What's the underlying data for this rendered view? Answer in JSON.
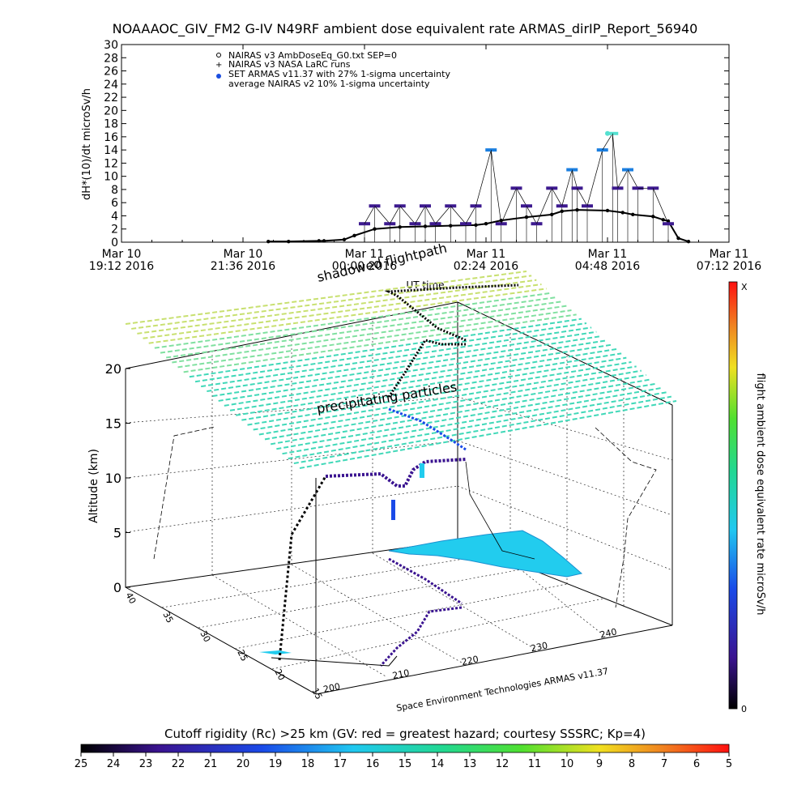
{
  "title": "NOAAAOC_GIV_FM2 G-IV   N49RF  ambient dose equivalent rate ARMAS_dirIP_Report_56940",
  "colors": {
    "armas_low": "#3d1a8f",
    "armas_mid": "#1b7fe0",
    "armas_high": "#55e0d0",
    "nairas": "#000000",
    "shadow_grid": "#40d8a0",
    "rc_fill": "#22ccee"
  },
  "top_chart": {
    "ylabel": "dH*(10)/dt microSv/h",
    "ylim": [
      0,
      30
    ],
    "yticks": [
      "0",
      "2",
      "4",
      "6",
      "8",
      "10",
      "12",
      "14",
      "16",
      "18",
      "20",
      "22",
      "24",
      "26",
      "28",
      "30"
    ],
    "xticks": [
      {
        "l1": "Mar 10",
        "l2": "19:12 2016"
      },
      {
        "l1": "Mar 10",
        "l2": "21:36 2016"
      },
      {
        "l1": "Mar 11",
        "l2": "00:00 2016"
      },
      {
        "l1": "Mar 11",
        "l2": "02:24 2016"
      },
      {
        "l1": "Mar 11",
        "l2": "04:48 2016"
      },
      {
        "l1": "Mar 11",
        "l2": "07:12 2016"
      }
    ],
    "xlabel": "UT time",
    "legend": [
      {
        "marker": "circle",
        "text": "NAIRAS v3 AmbDoseEq_G0.txt SEP=0"
      },
      {
        "marker": "plus",
        "text": "NAIRAS v3 NASA LaRC runs"
      },
      {
        "marker": "dot",
        "text": "SET ARMAS v11.37 with 27% 1-sigma uncertainty"
      },
      {
        "marker": "none",
        "text": "average NAIRAS v2 10% 1-sigma uncertainty"
      }
    ]
  },
  "chart_data": [
    {
      "type": "line",
      "title": "NOAAAOC_GIV_FM2 G-IV   N49RF  ambient dose equivalent rate ARMAS_dirIP_Report_56940",
      "xlabel": "UT time",
      "ylabel": "dH*(10)/dt microSv/h",
      "x_unit": "hours after Mar 10 19:12 2016",
      "xlim": [
        0,
        12
      ],
      "ylim": [
        0,
        30
      ],
      "series": [
        {
          "name": "NAIRAS v3 AmbDoseEq_G0.txt SEP=0",
          "x": [
            2.9,
            3.3,
            3.9,
            4.0,
            4.4,
            4.6,
            5.0,
            5.5,
            6.0,
            6.5,
            7.0,
            7.2,
            7.5,
            8.0,
            8.5,
            8.7,
            9.0,
            9.6,
            9.9,
            10.1,
            10.5,
            10.7,
            10.8,
            11.0,
            11.2
          ],
          "y": [
            0.1,
            0.1,
            0.2,
            0.2,
            0.4,
            1.0,
            2.0,
            2.3,
            2.4,
            2.5,
            2.6,
            2.8,
            3.3,
            3.8,
            4.2,
            4.7,
            4.9,
            4.8,
            4.5,
            4.2,
            3.9,
            3.4,
            3.2,
            0.6,
            0.1
          ]
        },
        {
          "name": "SET ARMAS v11.37 with 27% 1-sigma uncertainty",
          "x": [
            4.8,
            5.0,
            5.3,
            5.5,
            5.8,
            6.0,
            6.2,
            6.5,
            6.8,
            7.0,
            7.3,
            7.5,
            7.8,
            8.0,
            8.2,
            8.5,
            8.7,
            8.9,
            9.0,
            9.2,
            9.5,
            9.7,
            9.8,
            10.0,
            10.2,
            10.5,
            10.8
          ],
          "y": [
            2.8,
            5.5,
            2.8,
            5.5,
            2.8,
            5.5,
            2.8,
            5.5,
            2.8,
            5.5,
            14.0,
            2.8,
            8.2,
            5.5,
            2.8,
            8.2,
            5.5,
            11.0,
            8.2,
            5.5,
            14.0,
            16.5,
            8.2,
            11.0,
            8.2,
            8.2,
            2.8
          ]
        }
      ]
    },
    {
      "type": "scatter",
      "title": "shadowed flightpath",
      "zlabel": "Altitude (km)",
      "zlim": [
        0,
        20
      ],
      "zticks": [
        "0",
        "5",
        "10",
        "15",
        "20"
      ],
      "lon_ticks": [
        "200",
        "210",
        "220",
        "230",
        "240"
      ],
      "lat_ticks": [
        "15",
        "20",
        "25",
        "30",
        "35",
        "40"
      ],
      "annotations": [
        "precipitating particles",
        "shadowed flightpath",
        "Space Environment Technologies ARMAS v11.37"
      ]
    }
  ],
  "right_colorbar": {
    "label": "flight ambient dose equivalent rate microSv/h",
    "top_label": "X",
    "bottom_label": "0"
  },
  "bottom_colorbar": {
    "title": "Cutoff rigidity (Rc) >25 km (GV: red = greatest hazard; courtesy SSSRC; Kp=4)",
    "ticks": [
      "25",
      "24",
      "23",
      "22",
      "21",
      "20",
      "19",
      "18",
      "17",
      "16",
      "15",
      "14",
      "13",
      "12",
      "11",
      "10",
      "9",
      "8",
      "7",
      "6",
      "5"
    ]
  },
  "credit": "Space Environment Technologies ARMAS v11.37",
  "shadow_label": "shadowed flightpath",
  "precip_label": "precipitating particles"
}
